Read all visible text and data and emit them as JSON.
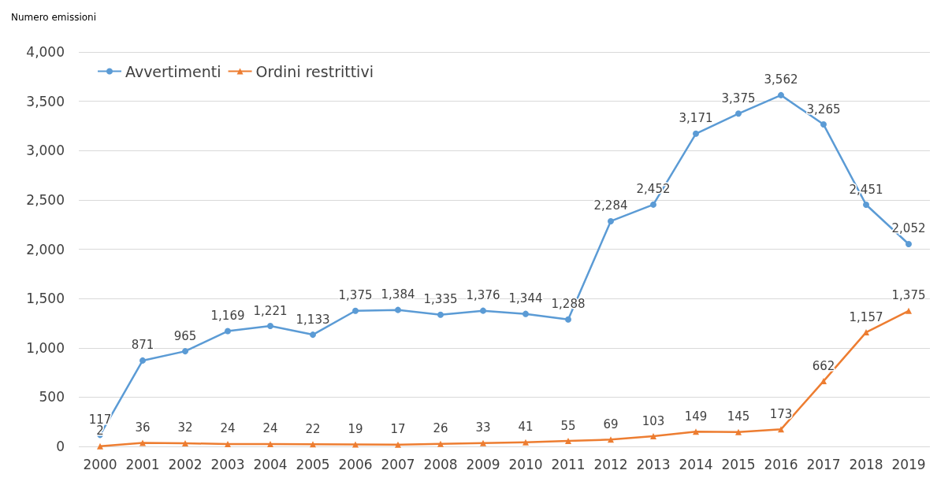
{
  "chart_data": {
    "type": "line",
    "ylabel": "Numero emissioni",
    "categories": [
      "2000",
      "2001",
      "2002",
      "2003",
      "2004",
      "2005",
      "2006",
      "2007",
      "2008",
      "2009",
      "2010",
      "2011",
      "2012",
      "2013",
      "2014",
      "2015",
      "2016",
      "2017",
      "2018",
      "2019"
    ],
    "series": [
      {
        "name": "Avvertimenti",
        "color": "#5b9bd5",
        "marker": "circle",
        "values": [
          117,
          871,
          965,
          1169,
          1221,
          1133,
          1375,
          1384,
          1335,
          1376,
          1344,
          1288,
          2284,
          2452,
          3171,
          3375,
          3562,
          3265,
          2451,
          2052
        ],
        "value_labels": [
          "117",
          "871",
          "965",
          "1,169",
          "1,221",
          "1,133",
          "1,375",
          "1,384",
          "1,335",
          "1,376",
          "1,344",
          "1,288",
          "2,284",
          "2,452",
          "3,171",
          "3,375",
          "3,562",
          "3,265",
          "2,451",
          "2,052"
        ]
      },
      {
        "name": "Ordini restrittivi",
        "color": "#ed7d31",
        "marker": "triangle",
        "values": [
          2,
          36,
          32,
          24,
          24,
          22,
          19,
          17,
          26,
          33,
          41,
          55,
          69,
          103,
          149,
          145,
          173,
          662,
          1157,
          1375
        ],
        "value_labels": [
          "2",
          "36",
          "32",
          "24",
          "24",
          "22",
          "19",
          "17",
          "26",
          "33",
          "41",
          "55",
          "69",
          "103",
          "149",
          "145",
          "173",
          "662",
          "1,157",
          "1,375"
        ]
      }
    ],
    "ylim": [
      0,
      4000
    ],
    "yticks": [
      0,
      500,
      {
        "value": 1000,
        "label": "1,000"
      },
      {
        "value": 1500,
        "label": "1,500"
      },
      {
        "value": 2000,
        "label": "2,000"
      },
      {
        "value": 2500,
        "label": "2,500"
      },
      {
        "value": 3000,
        "label": "3,000"
      },
      {
        "value": 3500,
        "label": "3,500"
      },
      {
        "value": 4000,
        "label": "4,000"
      }
    ],
    "grid": "y",
    "legend": "top left"
  }
}
